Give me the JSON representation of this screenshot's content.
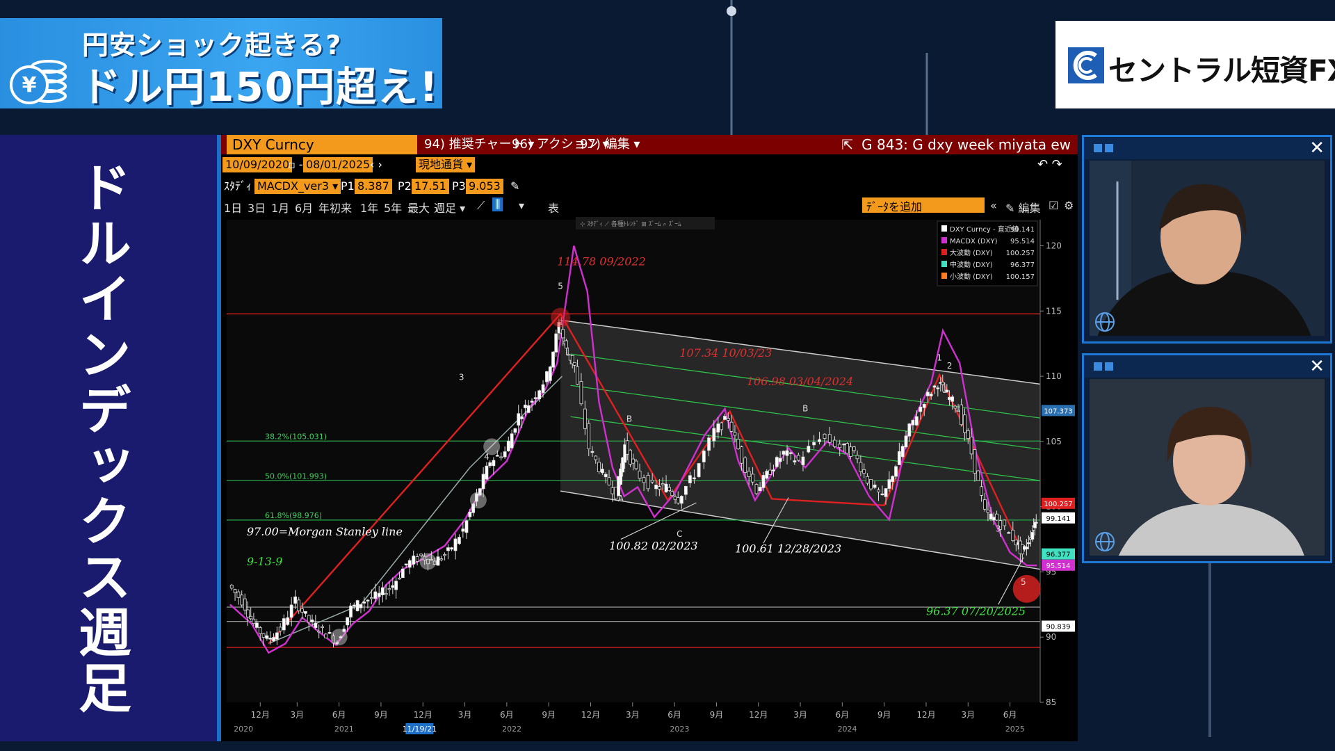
{
  "banner": {
    "line1": "円安ショック起きる?",
    "line2": "ドル円150円超え!",
    "icon": "yen-coin-icon"
  },
  "logo": {
    "text": "セントラル短資FX",
    "icon": "company-logo-mark"
  },
  "side_panel": {
    "title": "ドルインデックス週足"
  },
  "chart_window": {
    "ticker": "DXY Curncy",
    "menus": [
      "94) 推奨チャート ▾",
      "96) アクション ▾",
      "97) 編集 ▾"
    ],
    "window_title": "G 843: G dxy week miyata ew",
    "date_from": "10/09/2020",
    "date_to": "08/01/2025",
    "currency_mode": "現地通貨",
    "study_label": "ｽﾀﾃﾞｨ",
    "study_name": "MACDX_ver3",
    "params": [
      {
        "label": "P1",
        "value": "8.387"
      },
      {
        "label": "P2",
        "value": "17.51"
      },
      {
        "label": "P3",
        "value": "9.053"
      }
    ],
    "ranges": [
      "1日",
      "3日",
      "1月",
      "6月",
      "年初来",
      "1年",
      "5年",
      "最大",
      "週足 ▾"
    ],
    "table_label": "表",
    "add_data_placeholder": "ﾃﾞｰﾀを追加",
    "edit_label": "編集",
    "mini_toolbar": "⊹ ｽﾀﾃﾞｨ  ⟋ 各種ﾄﾚﾝﾄﾞ  ⊞ ｽﾞｰﾑ  ⌕ ｽﾞｰﾑ"
  },
  "chart_data": {
    "type": "line",
    "title": "",
    "legend": {
      "placement": "top-right",
      "entries": [
        {
          "name": "DXY Curncy - 直近値",
          "value": "99.141",
          "color": "#ffffff"
        },
        {
          "name": "MACDX (DXY)",
          "value": "95.514",
          "color": "#d030d0"
        },
        {
          "name": "大波動 (DXY)",
          "value": "100.257",
          "color": "#e02020"
        },
        {
          "name": "中波動 (DXY)",
          "value": "96.377",
          "color": "#40e0c0"
        },
        {
          "name": "小波動 (DXY)",
          "value": "100.157",
          "color": "#ff7a20"
        }
      ]
    },
    "ylim": [
      85,
      122
    ],
    "y_ticks": [
      "120",
      "115",
      "110",
      "105",
      "100",
      "95",
      "90",
      "85"
    ],
    "x_ticks": [
      {
        "label": "12月",
        "t": 2020.95
      },
      {
        "label": "3月",
        "t": 2021.17
      },
      {
        "label": "6月",
        "t": 2021.42
      },
      {
        "label": "9月",
        "t": 2021.67
      },
      {
        "label": "12月",
        "t": 2021.92
      },
      {
        "label": "3月",
        "t": 2022.17
      },
      {
        "label": "6月",
        "t": 2022.42
      },
      {
        "label": "9月",
        "t": 2022.67
      },
      {
        "label": "12月",
        "t": 2022.92
      },
      {
        "label": "3月",
        "t": 2023.17
      },
      {
        "label": "6月",
        "t": 2023.42
      },
      {
        "label": "9月",
        "t": 2023.67
      },
      {
        "label": "12月",
        "t": 2023.92
      },
      {
        "label": "3月",
        "t": 2024.17
      },
      {
        "label": "6月",
        "t": 2024.42
      },
      {
        "label": "9月",
        "t": 2024.67
      },
      {
        "label": "12月",
        "t": 2024.92
      },
      {
        "label": "3月",
        "t": 2025.17
      },
      {
        "label": "6月",
        "t": 2025.42
      }
    ],
    "year_labels": [
      {
        "label": "2020",
        "t": 2020.85
      },
      {
        "label": "2021",
        "t": 2021.45
      },
      {
        "label": "2022",
        "t": 2022.45
      },
      {
        "label": "2023",
        "t": 2023.45
      },
      {
        "label": "2024",
        "t": 2024.45
      },
      {
        "label": "2025",
        "t": 2025.45
      }
    ],
    "xlim": [
      2020.75,
      2025.6
    ],
    "x_marker": "11/19/21",
    "price_path": [
      [
        2020.77,
        94.0
      ],
      [
        2020.85,
        92.8
      ],
      [
        2020.92,
        91.0
      ],
      [
        2021.0,
        89.8
      ],
      [
        2021.08,
        90.6
      ],
      [
        2021.17,
        92.8
      ],
      [
        2021.25,
        91.2
      ],
      [
        2021.33,
        90.5
      ],
      [
        2021.42,
        89.7
      ],
      [
        2021.5,
        92.2
      ],
      [
        2021.58,
        92.8
      ],
      [
        2021.67,
        93.2
      ],
      [
        2021.75,
        94.0
      ],
      [
        2021.83,
        95.6
      ],
      [
        2021.92,
        96.2
      ],
      [
        2022.0,
        95.8
      ],
      [
        2022.08,
        96.5
      ],
      [
        2022.17,
        98.2
      ],
      [
        2022.25,
        100.8
      ],
      [
        2022.33,
        103.5
      ],
      [
        2022.42,
        104.2
      ],
      [
        2022.5,
        107.0
      ],
      [
        2022.58,
        108.2
      ],
      [
        2022.67,
        110.0
      ],
      [
        2022.74,
        114.0
      ],
      [
        2022.78,
        112.0
      ],
      [
        2022.83,
        110.8
      ],
      [
        2022.92,
        104.5
      ],
      [
        2023.0,
        102.5
      ],
      [
        2023.08,
        101.0
      ],
      [
        2023.13,
        104.7
      ],
      [
        2023.2,
        102.6
      ],
      [
        2023.3,
        101.5
      ],
      [
        2023.38,
        101.5
      ],
      [
        2023.45,
        100.6
      ],
      [
        2023.55,
        102.5
      ],
      [
        2023.67,
        105.8
      ],
      [
        2023.75,
        106.8
      ],
      [
        2023.83,
        103.6
      ],
      [
        2023.92,
        101.3
      ],
      [
        2024.0,
        102.8
      ],
      [
        2024.08,
        104.1
      ],
      [
        2024.17,
        103.5
      ],
      [
        2024.3,
        105.4
      ],
      [
        2024.42,
        104.6
      ],
      [
        2024.5,
        104.1
      ],
      [
        2024.58,
        102.0
      ],
      [
        2024.67,
        100.6
      ],
      [
        2024.75,
        103.2
      ],
      [
        2024.83,
        106.0
      ],
      [
        2024.92,
        108.2
      ],
      [
        2025.0,
        109.5
      ],
      [
        2025.05,
        108.6
      ],
      [
        2025.12,
        107.5
      ],
      [
        2025.2,
        104.1
      ],
      [
        2025.28,
        99.5
      ],
      [
        2025.35,
        99.0
      ],
      [
        2025.45,
        97.6
      ],
      [
        2025.5,
        96.4
      ],
      [
        2025.55,
        97.8
      ],
      [
        2025.58,
        99.1
      ]
    ],
    "macdx_path": [
      [
        2020.77,
        92.5
      ],
      [
        2020.9,
        91.0
      ],
      [
        2021.0,
        88.8
      ],
      [
        2021.1,
        89.5
      ],
      [
        2021.2,
        91.5
      ],
      [
        2021.3,
        90.4
      ],
      [
        2021.4,
        89.4
      ],
      [
        2021.5,
        91.0
      ],
      [
        2021.6,
        92.0
      ],
      [
        2021.7,
        94.0
      ],
      [
        2021.8,
        95.2
      ],
      [
        2021.92,
        96.0
      ],
      [
        2022.05,
        97.0
      ],
      [
        2022.17,
        99.0
      ],
      [
        2022.3,
        102.0
      ],
      [
        2022.42,
        103.5
      ],
      [
        2022.55,
        107.5
      ],
      [
        2022.65,
        109.0
      ],
      [
        2022.72,
        111.0
      ],
      [
        2022.82,
        120.0
      ],
      [
        2022.9,
        116.5
      ],
      [
        2022.97,
        108.0
      ],
      [
        2023.05,
        103.0
      ],
      [
        2023.12,
        100.8
      ],
      [
        2023.2,
        101.5
      ],
      [
        2023.3,
        99.2
      ],
      [
        2023.42,
        101.0
      ],
      [
        2023.5,
        103.0
      ],
      [
        2023.6,
        105.5
      ],
      [
        2023.72,
        107.5
      ],
      [
        2023.8,
        103.5
      ],
      [
        2023.9,
        100.5
      ],
      [
        2024.0,
        102.5
      ],
      [
        2024.1,
        104.5
      ],
      [
        2024.2,
        103.0
      ],
      [
        2024.33,
        105.0
      ],
      [
        2024.45,
        104.0
      ],
      [
        2024.58,
        100.8
      ],
      [
        2024.7,
        99.0
      ],
      [
        2024.82,
        106.0
      ],
      [
        2024.95,
        109.5
      ],
      [
        2025.02,
        113.5
      ],
      [
        2025.12,
        111.0
      ],
      [
        2025.22,
        104.0
      ],
      [
        2025.32,
        99.0
      ],
      [
        2025.42,
        96.5
      ],
      [
        2025.52,
        95.5
      ],
      [
        2025.58,
        95.5
      ]
    ],
    "wave_main": [
      [
        2021.0,
        89.5
      ],
      [
        2022.74,
        114.78
      ],
      [
        2023.38,
        100.5
      ],
      [
        2023.75,
        107.3
      ],
      [
        2024.0,
        100.6
      ],
      [
        2024.67,
        100.1
      ],
      [
        2025.0,
        110.1
      ],
      [
        2025.5,
        96.37
      ]
    ],
    "wave_inner": [
      [
        2021.0,
        89.5
      ],
      [
        2021.55,
        92.5
      ],
      [
        2022.2,
        103.0
      ],
      [
        2022.75,
        110.0
      ]
    ],
    "channel": {
      "upper": [
        [
          2022.74,
          114.3
        ],
        [
          2025.6,
          109.4
        ]
      ],
      "lower": [
        [
          2022.74,
          101.2
        ],
        [
          2025.6,
          95.2
        ]
      ]
    },
    "fib_levels": [
      {
        "label": "38.2%(105.031)",
        "y": 105.031
      },
      {
        "label": "50.0%(101.993)",
        "y": 101.993
      },
      {
        "label": "61.8%(98.976)",
        "y": 98.976
      }
    ],
    "red_levels": [
      114.78,
      89.209
    ],
    "white_levels": [
      91.2,
      92.3
    ],
    "annotations": [
      {
        "text": "114.78 09/2022",
        "t": 2022.72,
        "y": 118.5,
        "color": "#e03030"
      },
      {
        "text": "107.34 10/03/23",
        "t": 2023.45,
        "y": 111.5,
        "color": "#e03030"
      },
      {
        "text": "106.98 03/04/2024",
        "t": 2023.85,
        "y": 109.3,
        "color": "#e03030"
      },
      {
        "text": "97.00=Morgan Stanley line",
        "t": 2020.87,
        "y": 97.8,
        "color": "#ffffff"
      },
      {
        "text": "9-13-9",
        "t": 2020.87,
        "y": 95.5,
        "color": "#40e040"
      },
      {
        "text": "100.82 02/2023",
        "t": 2023.03,
        "y": 96.7,
        "color": "#ffffff"
      },
      {
        "text": "100.61 12/28/2023",
        "t": 2023.78,
        "y": 96.5,
        "color": "#ffffff"
      },
      {
        "text": "96.37 07/20/2025",
        "t": 2024.92,
        "y": 91.7,
        "color": "#40e040"
      }
    ],
    "wave_labels": [
      {
        "text": "5",
        "t": 2022.74,
        "y": 116.7
      },
      {
        "text": "3",
        "t": 2022.15,
        "y": 109.7
      },
      {
        "text": "4",
        "t": 2022.3,
        "y": 103.6
      },
      {
        "text": "B",
        "t": 2023.15,
        "y": 106.5
      },
      {
        "text": "A",
        "t": 2023.1,
        "y": 100.4
      },
      {
        "text": "C",
        "t": 2023.45,
        "y": 97.7
      },
      {
        "text": "B",
        "t": 2024.2,
        "y": 107.3
      },
      {
        "text": "1",
        "t": 2025.0,
        "y": 111.2
      },
      {
        "text": "2",
        "t": 2025.06,
        "y": 110.6
      },
      {
        "text": "3",
        "t": 2025.35,
        "y": 98.1
      },
      {
        "text": "5",
        "t": 2025.5,
        "y": 94.0
      }
    ],
    "right_tags": [
      {
        "text": "107.373",
        "y": 107.373,
        "bg": "#2a6fb0"
      },
      {
        "text": "100.257",
        "y": 100.257,
        "bg": "#e02020"
      },
      {
        "text": "99.141",
        "y": 99.141,
        "bg": "#ffffff"
      },
      {
        "text": "96.377",
        "y": 96.377,
        "bg": "#40e0c0"
      },
      {
        "text": "95.514",
        "y": 95.514,
        "bg": "#d030d0"
      },
      {
        "text": "90.839",
        "y": 90.839,
        "bg": "#ffffff"
      }
    ]
  },
  "cams": [
    {
      "close": "✕"
    },
    {
      "close": "✕"
    }
  ]
}
